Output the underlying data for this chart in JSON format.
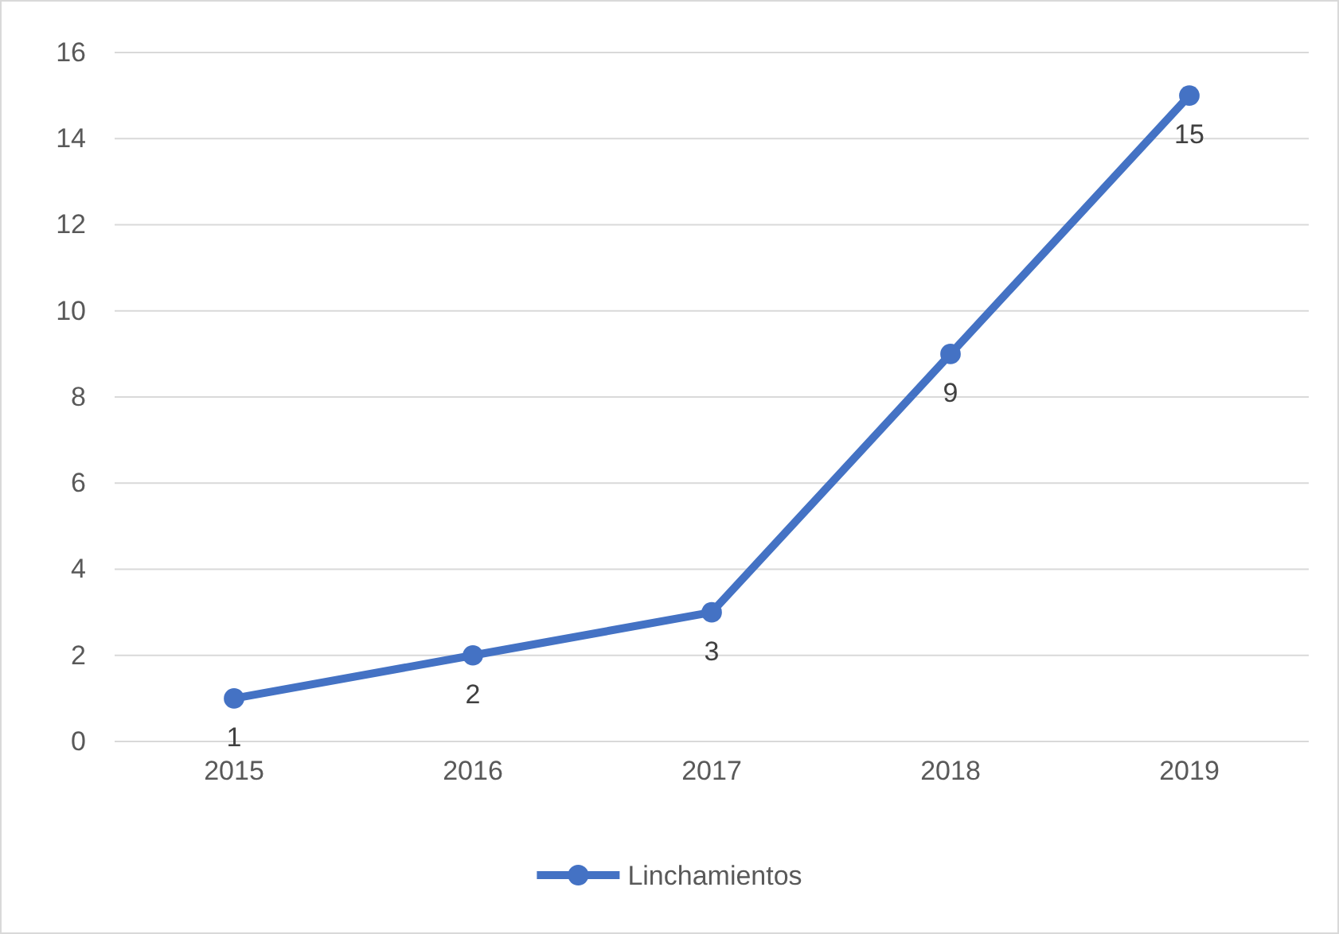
{
  "chart_data": {
    "type": "line",
    "categories": [
      "2015",
      "2016",
      "2017",
      "2018",
      "2019"
    ],
    "series": [
      {
        "name": "Linchamientos",
        "color": "#4472c4",
        "values": [
          1,
          2,
          3,
          9,
          15
        ]
      }
    ],
    "ylim": [
      0,
      16
    ],
    "yticks": [
      0,
      2,
      4,
      6,
      8,
      10,
      12,
      14,
      16
    ],
    "grid": "y",
    "legend": "bottom",
    "marker": "circle",
    "data_labels": true
  }
}
